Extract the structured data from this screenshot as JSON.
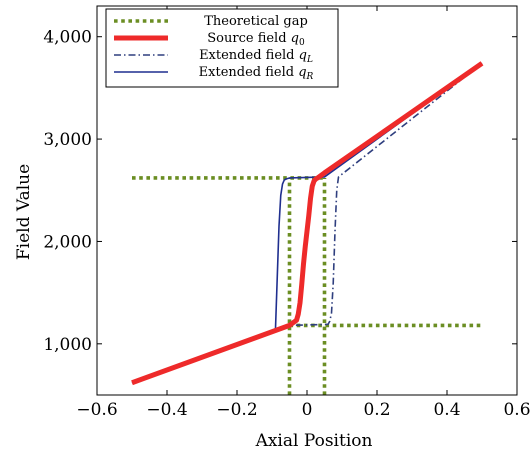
{
  "chart_data": {
    "type": "line",
    "title": "",
    "xlabel": "Axial Position",
    "ylabel": "Field Value",
    "xlim": [
      -0.6,
      0.6
    ],
    "ylim": [
      500,
      4300
    ],
    "x_ticks": [
      -0.6,
      -0.4,
      -0.2,
      0,
      0.2,
      0.4,
      0.6
    ],
    "x_tick_labels": [
      "−0.6",
      "−0.4",
      "−0.2",
      "0",
      "0.2",
      "0.4",
      "0.6"
    ],
    "y_ticks": [
      1000,
      2000,
      3000,
      4000
    ],
    "y_tick_labels": [
      "1,000",
      "2,000",
      "3,000",
      "4,000"
    ],
    "grid": false,
    "legend_position": "top-left",
    "series": [
      {
        "name": "Theoretical gap",
        "style": "dotted",
        "color": "#6b8e23",
        "segments": [
          [
            [
              -0.5,
              2620
            ],
            [
              0.05,
              2620
            ]
          ],
          [
            [
              -0.05,
              1180
            ],
            [
              0.5,
              1180
            ]
          ],
          [
            [
              -0.05,
              500
            ],
            [
              -0.05,
              2620
            ]
          ],
          [
            [
              0.05,
              500
            ],
            [
              0.05,
              2620
            ]
          ]
        ]
      },
      {
        "name": "Source field q0",
        "legend_base": "Source field ",
        "legend_sub": "0",
        "style": "solid-thick",
        "color": "#ee2a2a",
        "x": [
          -0.5,
          -0.05,
          -0.03,
          -0.025,
          -0.02,
          -0.015,
          -0.01,
          -0.005,
          0,
          0.005,
          0.01,
          0.015,
          0.02,
          0.025,
          0.03,
          0.05,
          0.5
        ],
        "y": [
          620,
          1180,
          1230,
          1290,
          1400,
          1580,
          1780,
          1950,
          2100,
          2250,
          2420,
          2540,
          2590,
          2610,
          2620,
          2670,
          3740
        ]
      },
      {
        "name": "Extended field qL",
        "legend_base": "Extended field ",
        "legend_sub": "L",
        "style": "dash-dot",
        "color": "#2f3f7f",
        "x": [
          -0.5,
          -0.05,
          0.06,
          0.065,
          0.07,
          0.075,
          0.08,
          0.085,
          0.09,
          0.5
        ],
        "y": [
          620,
          1180,
          1190,
          1220,
          1300,
          1600,
          2100,
          2500,
          2630,
          3740
        ]
      },
      {
        "name": "Extended field qR",
        "legend_base": "Extended field ",
        "legend_sub": "R",
        "style": "solid",
        "color": "#1f2f8f",
        "x": [
          -0.5,
          -0.09,
          -0.09,
          -0.085,
          -0.08,
          -0.075,
          -0.07,
          -0.065,
          -0.06,
          -0.05,
          0.05,
          0.5
        ],
        "y": [
          620,
          1140,
          1150,
          1650,
          2150,
          2450,
          2560,
          2600,
          2610,
          2620,
          2630,
          3740
        ]
      }
    ]
  }
}
